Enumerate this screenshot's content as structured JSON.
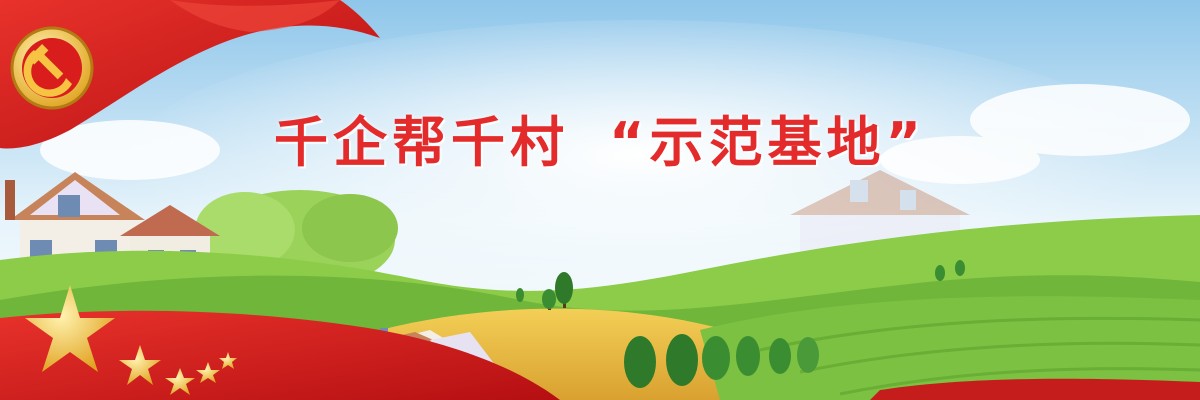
{
  "banner": {
    "title_part1": "千企帮千村",
    "title_part2": "“示范基地”"
  },
  "colors": {
    "title": "#e42b2b",
    "flag_red": "#d91c1c",
    "star_gold": "#f6c343",
    "sky_top": "#8fc6ea",
    "grass": "#7cc142"
  },
  "icons": [
    "party-emblem-icon",
    "star-icon",
    "house-icon",
    "tree-icon"
  ]
}
